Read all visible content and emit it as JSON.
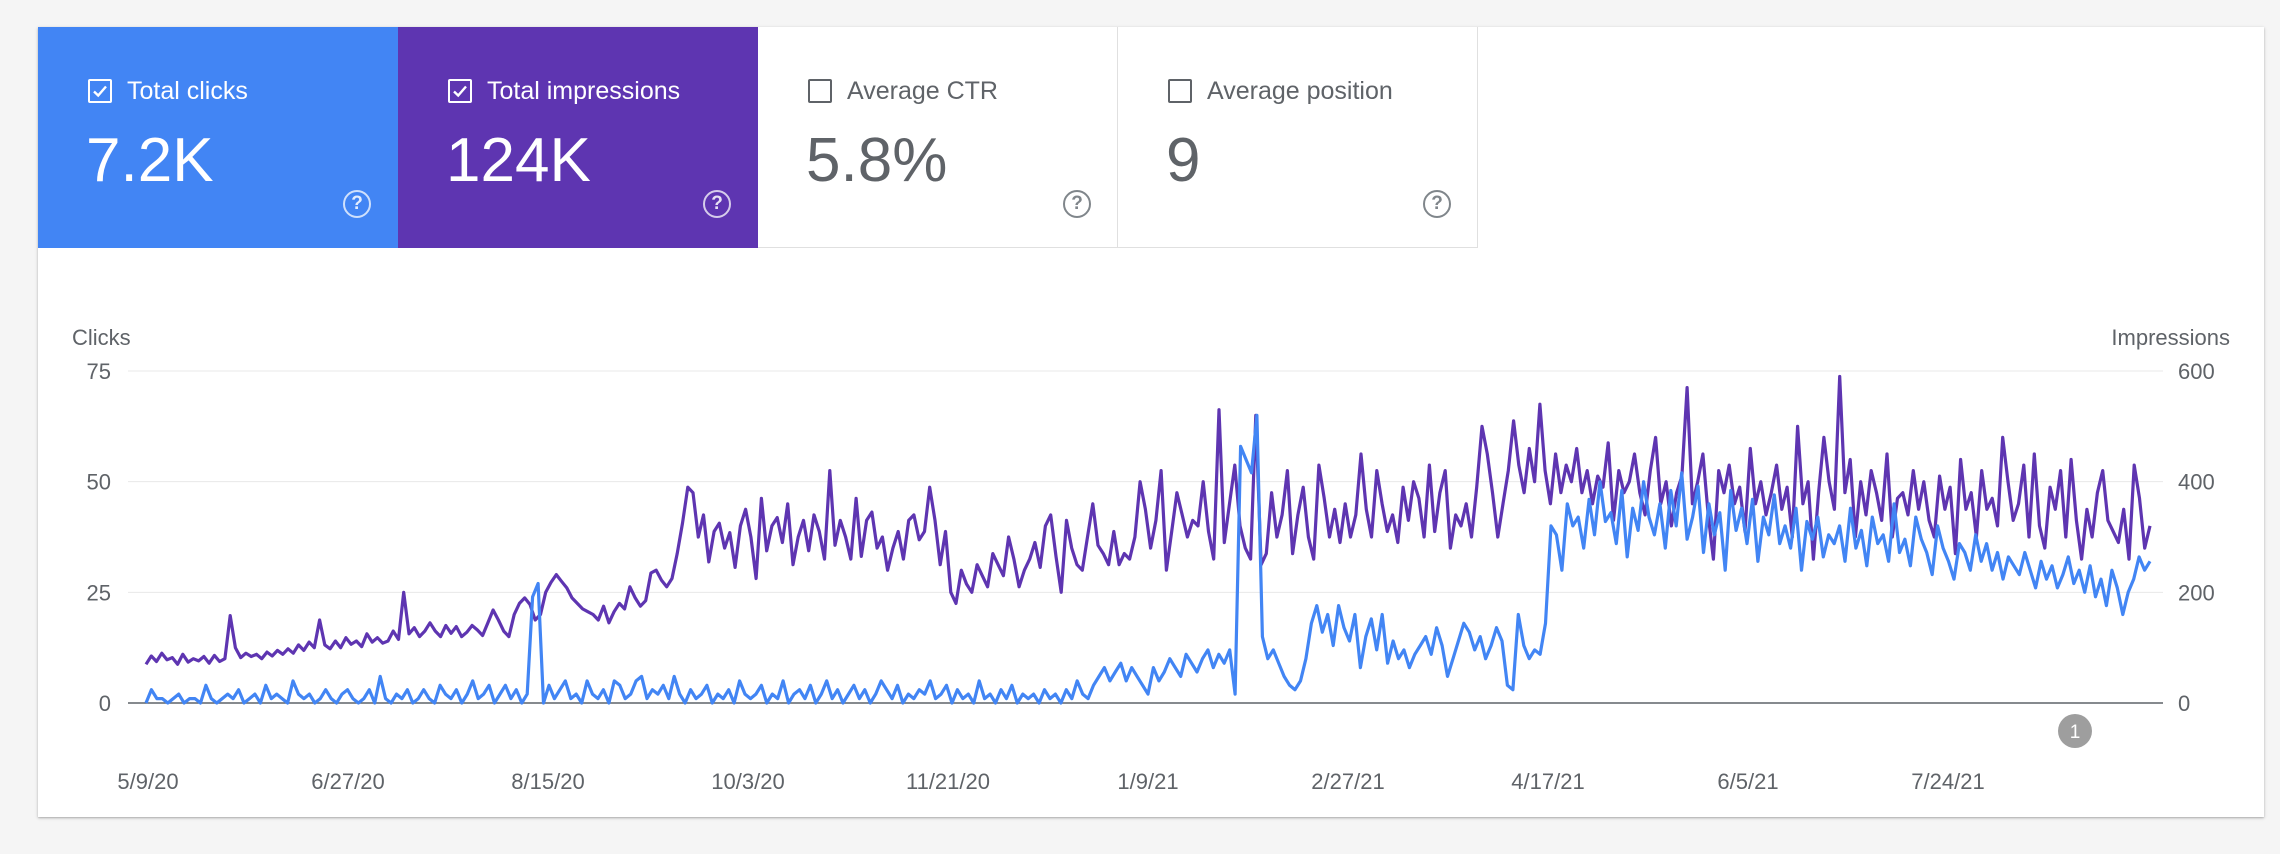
{
  "metrics": [
    {
      "label": "Total clicks",
      "value": "7.2K",
      "checked": true,
      "color": "#4285f4"
    },
    {
      "label": "Total impressions",
      "value": "124K",
      "checked": true,
      "color": "#5e35b1"
    },
    {
      "label": "Average CTR",
      "value": "5.8%",
      "checked": false,
      "color": "#ffffff"
    },
    {
      "label": "Average position",
      "value": "9",
      "checked": false,
      "color": "#ffffff"
    }
  ],
  "help_glyph": "?",
  "annotation_marker": "1",
  "chart_data": {
    "type": "line",
    "xlabel": "",
    "ylabel_left": "Clicks",
    "ylabel_right": "Impressions",
    "ylim_left": [
      0,
      75
    ],
    "ylim_right": [
      0,
      600
    ],
    "yticks_left": [
      "0",
      "25",
      "50",
      "75"
    ],
    "yticks_right": [
      "0",
      "200",
      "400",
      "600"
    ],
    "xticks": [
      "5/9/20",
      "6/27/20",
      "8/15/20",
      "10/3/20",
      "11/21/20",
      "1/9/21",
      "2/27/21",
      "4/17/21",
      "6/5/21",
      "7/24/21"
    ],
    "grid": true,
    "x_start": "5/9/20",
    "x_end": "9/2/21",
    "series": [
      {
        "axis": "left",
        "color": "#4285f4",
        "values": [
          0,
          3,
          1,
          1,
          0,
          1,
          2,
          0,
          1,
          1,
          0,
          4,
          1,
          0,
          1,
          2,
          1,
          3,
          0,
          1,
          2,
          0,
          4,
          1,
          2,
          1,
          0,
          5,
          2,
          1,
          2,
          0,
          1,
          3,
          1,
          0,
          2,
          3,
          1,
          0,
          1,
          3,
          0,
          6,
          1,
          0,
          2,
          1,
          3,
          0,
          1,
          3,
          1,
          0,
          4,
          2,
          1,
          3,
          0,
          2,
          5,
          1,
          2,
          4,
          0,
          2,
          4,
          1,
          3,
          0,
          2,
          24,
          27,
          0,
          4,
          1,
          3,
          5,
          1,
          2,
          0,
          5,
          2,
          1,
          3,
          0,
          5,
          4,
          1,
          2,
          5,
          6,
          1,
          3,
          2,
          4,
          1,
          6,
          2,
          0,
          3,
          1,
          2,
          4,
          0,
          2,
          1,
          3,
          0,
          5,
          2,
          1,
          2,
          4,
          0,
          2,
          1,
          5,
          0,
          2,
          3,
          1,
          4,
          0,
          2,
          5,
          1,
          3,
          0,
          2,
          4,
          1,
          3,
          0,
          2,
          5,
          3,
          1,
          4,
          0,
          2,
          1,
          3,
          2,
          5,
          1,
          2,
          4,
          0,
          3,
          1,
          2,
          0,
          5,
          1,
          2,
          0,
          3,
          1,
          4,
          0,
          2,
          1,
          2,
          0,
          3,
          1,
          2,
          0,
          3,
          1,
          5,
          2,
          1,
          4,
          6,
          8,
          5,
          7,
          9,
          5,
          8,
          6,
          4,
          2,
          8,
          5,
          7,
          10,
          8,
          6,
          11,
          9,
          7,
          10,
          12,
          8,
          11,
          9,
          12,
          2,
          58,
          55,
          52,
          65,
          15,
          10,
          12,
          9,
          6,
          4,
          3,
          5,
          10,
          18,
          22,
          16,
          20,
          13,
          22,
          17,
          14,
          20,
          8,
          15,
          19,
          12,
          20,
          9,
          14,
          10,
          12,
          8,
          11,
          13,
          15,
          11,
          17,
          13,
          6,
          10,
          14,
          18,
          16,
          12,
          15,
          10,
          13,
          17,
          14,
          4,
          3,
          20,
          13,
          10,
          12,
          11,
          18,
          40,
          38,
          30,
          45,
          40,
          42,
          35,
          46,
          38,
          50,
          41,
          43,
          36,
          48,
          33,
          44,
          39,
          50,
          42,
          38,
          45,
          35,
          48,
          40,
          52,
          37,
          42,
          49,
          34,
          45,
          38,
          43,
          30,
          48,
          39,
          44,
          36,
          46,
          32,
          42,
          38,
          47,
          36,
          40,
          35,
          44,
          30,
          41,
          37,
          42,
          33,
          38,
          36,
          40,
          32,
          44,
          35,
          39,
          31,
          42,
          36,
          38,
          32,
          45,
          34,
          37,
          31,
          42,
          37,
          34,
          29,
          40,
          35,
          32,
          28,
          36,
          34,
          30,
          38,
          32,
          36,
          30,
          34,
          28,
          33,
          31,
          29,
          34,
          30,
          26,
          32,
          28,
          31,
          26,
          29,
          33,
          27,
          30,
          25,
          31,
          24,
          28,
          22,
          30,
          26,
          20,
          25,
          28,
          33,
          30,
          32
        ]
      },
      {
        "axis": "right",
        "color": "#5e35b1",
        "values": [
          70,
          85,
          75,
          90,
          78,
          82,
          70,
          88,
          74,
          80,
          76,
          84,
          72,
          86,
          75,
          80,
          158,
          100,
          82,
          90,
          84,
          88,
          80,
          92,
          85,
          95,
          88,
          98,
          90,
          105,
          95,
          110,
          100,
          150,
          105,
          98,
          112,
          100,
          118,
          106,
          112,
          102,
          125,
          110,
          118,
          108,
          112,
          130,
          115,
          200,
          125,
          136,
          120,
          130,
          145,
          130,
          120,
          140,
          126,
          138,
          120,
          128,
          140,
          132,
          122,
          145,
          168,
          150,
          130,
          120,
          160,
          180,
          190,
          178,
          150,
          160,
          200,
          218,
          232,
          220,
          208,
          190,
          180,
          170,
          165,
          160,
          150,
          175,
          145,
          165,
          180,
          170,
          210,
          190,
          175,
          185,
          235,
          240,
          222,
          210,
          225,
          270,
          325,
          390,
          380,
          300,
          340,
          255,
          310,
          325,
          280,
          308,
          245,
          320,
          350,
          300,
          225,
          370,
          275,
          320,
          335,
          290,
          360,
          250,
          300,
          330,
          275,
          340,
          310,
          260,
          420,
          285,
          330,
          300,
          260,
          370,
          265,
          330,
          345,
          280,
          300,
          240,
          280,
          310,
          260,
          330,
          340,
          295,
          310,
          390,
          330,
          250,
          310,
          200,
          180,
          240,
          215,
          200,
          250,
          230,
          210,
          270,
          250,
          230,
          300,
          260,
          210,
          240,
          260,
          290,
          245,
          320,
          340,
          265,
          200,
          330,
          280,
          250,
          240,
          300,
          360,
          285,
          270,
          250,
          310,
          250,
          270,
          260,
          300,
          400,
          350,
          280,
          330,
          420,
          240,
          310,
          380,
          340,
          300,
          330,
          320,
          400,
          310,
          260,
          530,
          290,
          360,
          430,
          320,
          280,
          260,
          520,
          250,
          270,
          380,
          300,
          340,
          420,
          270,
          340,
          390,
          300,
          260,
          430,
          370,
          300,
          350,
          290,
          360,
          300,
          340,
          450,
          350,
          300,
          420,
          360,
          310,
          340,
          290,
          390,
          330,
          400,
          370,
          300,
          430,
          310,
          380,
          420,
          280,
          340,
          320,
          360,
          300,
          390,
          500,
          450,
          380,
          300,
          360,
          420,
          510,
          430,
          380,
          460,
          400,
          540,
          420,
          360,
          450,
          380,
          430,
          400,
          460,
          380,
          420,
          360,
          410,
          390,
          470,
          330,
          420,
          380,
          400,
          450,
          380,
          340,
          420,
          480,
          360,
          400,
          320,
          380,
          410,
          570,
          360,
          400,
          450,
          340,
          260,
          420,
          380,
          430,
          360,
          390,
          310,
          460,
          360,
          400,
          340,
          380,
          430,
          350,
          390,
          300,
          500,
          360,
          400,
          260,
          380,
          480,
          400,
          350,
          590,
          380,
          440,
          300,
          400,
          340,
          420,
          380,
          330,
          450,
          300,
          370,
          380,
          340,
          420,
          350,
          400,
          330,
          300,
          410,
          350,
          390,
          270,
          440,
          350,
          380,
          300,
          420,
          350,
          370,
          320,
          480,
          400,
          330,
          360,
          430,
          300,
          450,
          320,
          280,
          390,
          350,
          420,
          300,
          440,
          330,
          260,
          350,
          300,
          380,
          420,
          330,
          310,
          290,
          350,
          260,
          430,
          370,
          280,
          320
        ]
      }
    ]
  }
}
